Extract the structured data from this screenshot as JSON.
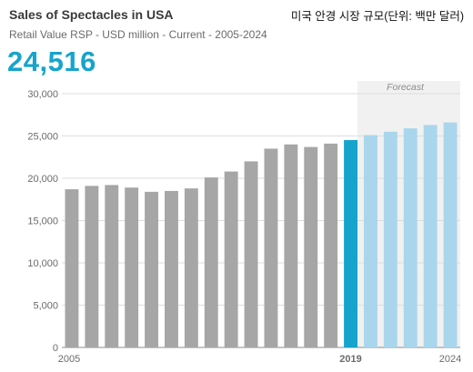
{
  "header": {
    "title": "Sales of Spectacles in USA",
    "subtitle": "Retail Value RSP - USD million - Current - 2005-2024",
    "big_value": "24,516",
    "note": "미국 안경 시장 규모(단위: 백만 달러)"
  },
  "chart_data": {
    "type": "bar",
    "categories": [
      "2005",
      "2006",
      "2007",
      "2008",
      "2009",
      "2010",
      "2011",
      "2012",
      "2013",
      "2014",
      "2015",
      "2016",
      "2017",
      "2018",
      "2019",
      "2020",
      "2021",
      "2022",
      "2023",
      "2024"
    ],
    "values": [
      18700,
      19100,
      19200,
      18900,
      18400,
      18500,
      18800,
      20100,
      20800,
      22000,
      23500,
      24000,
      23700,
      24100,
      24516,
      25100,
      25500,
      25900,
      26300,
      26600
    ],
    "ylim": [
      0,
      30000
    ],
    "yticks": [
      "0",
      "5,000",
      "10,000",
      "15,000",
      "20,000",
      "25,000",
      "30,000"
    ],
    "ytick_values": [
      0,
      5000,
      10000,
      15000,
      20000,
      25000,
      30000
    ],
    "xtick_labels": [
      {
        "label": "2005",
        "category": "2005",
        "highlight": false
      },
      {
        "label": "2019",
        "category": "2019",
        "highlight": true
      },
      {
        "label": "2024",
        "category": "2024",
        "highlight": false
      }
    ],
    "current_category": "2019",
    "forecast_start": "2020",
    "forecast_label": "Forecast",
    "grid": true,
    "colors": {
      "historical": "#a6a6a6",
      "current": "#16a4cc",
      "forecast": "#a9d6ec",
      "forecast_band": "#f1f1f1",
      "grid": "#dddddd",
      "axis": "#8c8c8c"
    }
  }
}
